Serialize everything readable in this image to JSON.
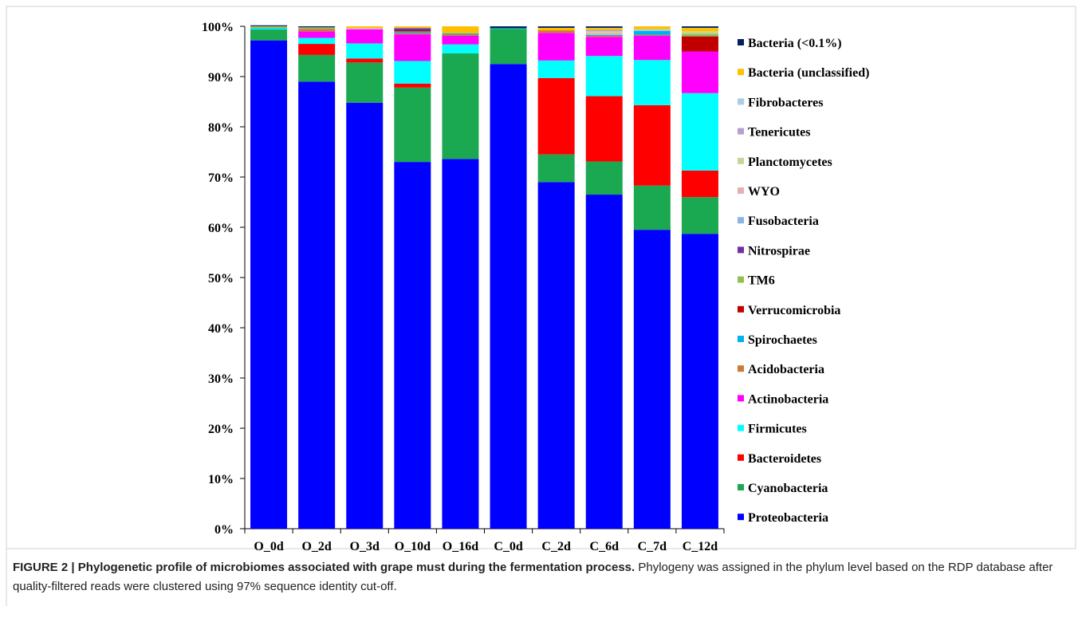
{
  "chart_data": {
    "type": "stacked_bar",
    "categories": [
      "O_0d",
      "O_2d",
      "O_3d",
      "O_10d",
      "O_16d",
      "C_0d",
      "C_2d",
      "C_6d",
      "C_7d",
      "C_12d"
    ],
    "series": [
      {
        "name": "Proteobacteria",
        "color": "#0000ff",
        "values": [
          97.2,
          89,
          84.8,
          73,
          73.6,
          92.5,
          69,
          66.5,
          59.5,
          58.7
        ]
      },
      {
        "name": "Cyanobacteria",
        "color": "#1aa850",
        "values": [
          2.2,
          5.3,
          8,
          14.8,
          21,
          7,
          5.5,
          6.6,
          8.8,
          7.3
        ]
      },
      {
        "name": "Bacteroidetes",
        "color": "#ff0000",
        "values": [
          0,
          2.2,
          0.8,
          0.8,
          0,
          0,
          15.2,
          13,
          16,
          5.3
        ]
      },
      {
        "name": "Firmicutes",
        "color": "#00ffff",
        "values": [
          0.2,
          1.2,
          3,
          4.5,
          1.8,
          0.1,
          3.5,
          8,
          9,
          15.4
        ]
      },
      {
        "name": "Actinobacteria",
        "color": "#ff00ff",
        "values": [
          0,
          1.3,
          2.8,
          5.3,
          1.7,
          0,
          5.5,
          3.8,
          4.8,
          8.3
        ]
      },
      {
        "name": "Acidobacteria",
        "color": "#cc7a3a",
        "values": [
          0,
          0.5,
          0,
          0.3,
          0.3,
          0,
          0.5,
          0.2,
          0.2,
          0
        ]
      },
      {
        "name": "Spirochaetes",
        "color": "#00b0f0",
        "values": [
          0.2,
          0,
          0,
          0.3,
          0.2,
          0,
          0,
          0.2,
          0.8,
          0
        ]
      },
      {
        "name": "Verrucomicrobia",
        "color": "#c00000",
        "values": [
          0,
          0,
          0,
          0.3,
          0,
          0,
          0,
          0,
          0,
          3
        ]
      },
      {
        "name": "TM6",
        "color": "#92c050",
        "values": [
          0,
          0.3,
          0,
          0,
          0,
          0,
          0,
          0,
          0,
          0.5
        ]
      },
      {
        "name": "Nitrospirae",
        "color": "#7030a0",
        "values": [
          0,
          0,
          0,
          0.3,
          0,
          0,
          0,
          0,
          0,
          0
        ]
      },
      {
        "name": "Fusobacteria",
        "color": "#8db4e2",
        "values": [
          0,
          0,
          0,
          0.1,
          0,
          0,
          0,
          0,
          0,
          0
        ]
      },
      {
        "name": "WYO",
        "color": "#e6b0b0",
        "values": [
          0,
          0,
          0.3,
          0,
          0,
          0,
          0,
          0.4,
          0,
          0
        ]
      },
      {
        "name": "Planctomycetes",
        "color": "#c4d79b",
        "values": [
          0,
          0,
          0,
          0,
          0,
          0,
          0,
          0.3,
          0,
          0.5
        ]
      },
      {
        "name": "Tenericutes",
        "color": "#b8a0cc",
        "values": [
          0,
          0,
          0,
          0,
          0,
          0,
          0,
          0.3,
          0,
          0
        ]
      },
      {
        "name": "Fibrobacteres",
        "color": "#a6cfe2",
        "values": [
          0,
          0,
          0,
          0,
          0,
          0,
          0,
          0,
          0.3,
          0
        ]
      },
      {
        "name": "Bacteria (unclassified)",
        "color": "#ffc000",
        "values": [
          0.2,
          0,
          0.3,
          0.3,
          1.4,
          0,
          0.5,
          0.4,
          0.6,
          0.7
        ]
      },
      {
        "name": "Bacteria (<0.1%)",
        "color": "#002060",
        "values": [
          0.2,
          0.2,
          0,
          0,
          0,
          0.4,
          0.3,
          0.3,
          0,
          0.3
        ]
      }
    ],
    "ylim": [
      0,
      100
    ],
    "yticks": [
      {
        "value": 0,
        "label": "0%"
      },
      {
        "value": 10,
        "label": "10%"
      },
      {
        "value": 20,
        "label": "20%"
      },
      {
        "value": 30,
        "label": "30%"
      },
      {
        "value": 40,
        "label": "40%"
      },
      {
        "value": 50,
        "label": "50%"
      },
      {
        "value": 60,
        "label": "60%"
      },
      {
        "value": 70,
        "label": "70%"
      },
      {
        "value": 80,
        "label": "80%"
      },
      {
        "value": 90,
        "label": "90%"
      },
      {
        "value": 100,
        "label": "100%"
      }
    ],
    "caption": {
      "heading": "FIGURE 2 | Phylogenetic profile of microbiomes associated with grape must during the fermentation process.",
      "text": "Phylogeny was assigned in the phylum level based on the RDP database after quality-filtered reads were clustered using 97% sequence identity cut-off."
    }
  }
}
